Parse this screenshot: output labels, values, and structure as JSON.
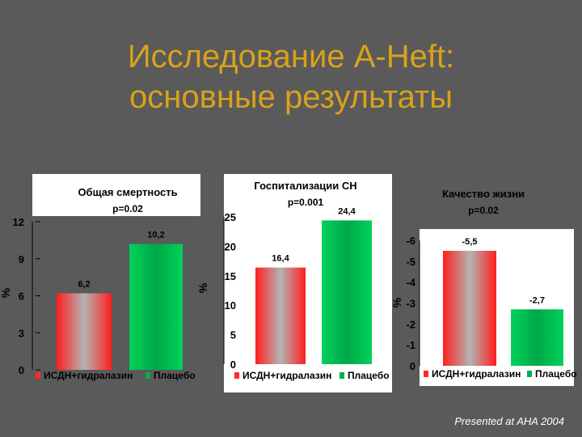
{
  "slide": {
    "title_line1": "Исследование A-Heft:",
    "title_line2": "основные результаты",
    "footer": "Presented at AHA 2004"
  },
  "colors": {
    "background": "#5a5a5a",
    "title": "#d9a21b",
    "panel": "#ffffff",
    "red_bar": "#ff2a2a",
    "green_bar": "#00b050"
  },
  "chart_data": [
    {
      "type": "bar",
      "title": "Общая смертность",
      "subtitle": "p=0.02",
      "ylabel": "%",
      "ylim": [
        0,
        12
      ],
      "yticks": [
        "0",
        "3",
        "6",
        "9",
        "12"
      ],
      "categories": [
        "ИСДН+гидралазин",
        "Плацебо"
      ],
      "values": [
        6.2,
        10.2
      ],
      "value_labels": [
        "6,2",
        "10,2"
      ],
      "legend": [
        "ИСДН+гидралазин",
        "Плацебо"
      ],
      "legend_position": "bottom"
    },
    {
      "type": "bar",
      "title": "Госпитализации СН",
      "subtitle": "p=0.001",
      "ylabel": "%",
      "ylim": [
        0,
        25
      ],
      "yticks": [
        "0",
        "5",
        "10",
        "15",
        "20",
        "25"
      ],
      "categories": [
        "ИСДН+гидралазин",
        "Плацебо"
      ],
      "values": [
        16.4,
        24.4
      ],
      "value_labels": [
        "16,4",
        "24,4"
      ],
      "legend": [
        "ИСДН+гидралазин",
        "Плацебо"
      ],
      "legend_position": "bottom"
    },
    {
      "type": "bar",
      "title": "Качество жизни",
      "subtitle": "p=0.02",
      "ylabel": "%",
      "ylim": [
        0,
        -6
      ],
      "yticks": [
        "0",
        "-1",
        "-2",
        "-3",
        "-4",
        "-5",
        "-6"
      ],
      "categories": [
        "ИСДН+гидралазин",
        "Плацебо"
      ],
      "values": [
        -5.5,
        -2.7
      ],
      "value_labels": [
        "-5,5",
        "-2,7"
      ],
      "legend": [
        "ИСДН+гидралазин",
        "Плацебо"
      ],
      "legend_position": "bottom"
    }
  ]
}
